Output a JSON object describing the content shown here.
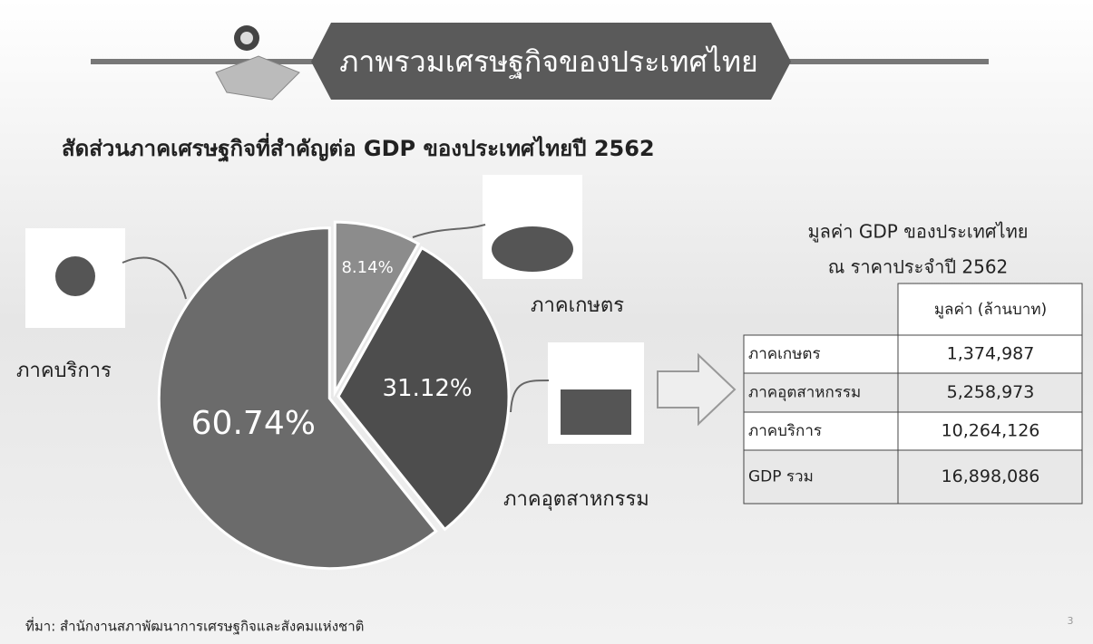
{
  "header": {
    "title": "ภาพรวมเศรษฐกิจของประเทศไทย"
  },
  "chart_data": {
    "type": "pie",
    "title": "สัดส่วนภาคเศรษฐกิจที่สำคัญต่อ GDP ของประเทศไทยปี 2562",
    "categories": [
      "ภาคเกษตร",
      "ภาคอุตสาหกรรม",
      "ภาคบริการ"
    ],
    "values": [
      8.14,
      31.12,
      60.74
    ],
    "value_labels": [
      "8.14%",
      "31.12%",
      "60.74%"
    ],
    "colors": [
      "#8c8c8c",
      "#4d4d4d",
      "#6b6b6b"
    ]
  },
  "table": {
    "title_lines": [
      "มูลค่า GDP ของประเทศไทย",
      "ณ ราคาประจำปี 2562"
    ],
    "column_header": "มูลค่า (ล้านบาท)",
    "rows": [
      [
        "ภาคเกษตร",
        "1,374,987"
      ],
      [
        "ภาคอุตสาหกรรม",
        "5,258,973"
      ],
      [
        "ภาคบริการ",
        "10,264,126"
      ],
      [
        "GDP รวม",
        "16,898,086"
      ]
    ]
  },
  "source": "ที่มา: สำนักงานสภาพัฒนาการเศรษฐกิจและสังคมแห่งชาติ",
  "page_number": "3"
}
